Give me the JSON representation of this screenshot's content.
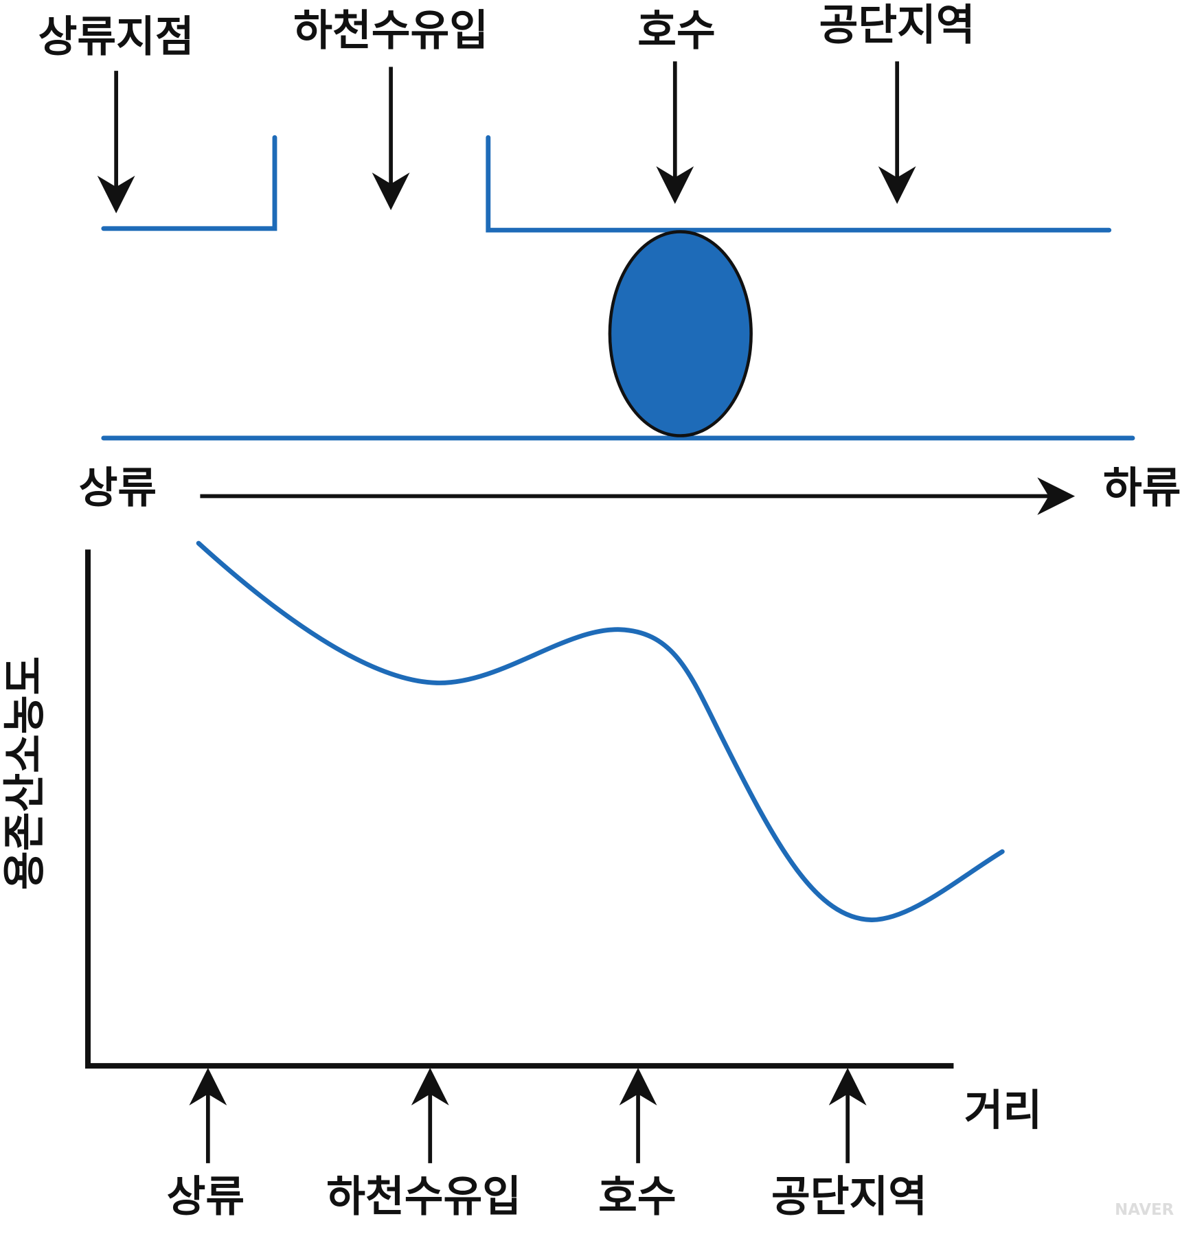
{
  "top_labels": [
    "상류지점",
    "하천수유입",
    "호수",
    "공단지역"
  ],
  "flow": {
    "start": "상류",
    "end": "하류"
  },
  "graph": {
    "y_label": "용존산소농도",
    "x_label": "거리",
    "x_labels": [
      "상류",
      "하천수유입",
      "호수",
      "공단지역"
    ]
  },
  "watermark": "NAVER"
}
